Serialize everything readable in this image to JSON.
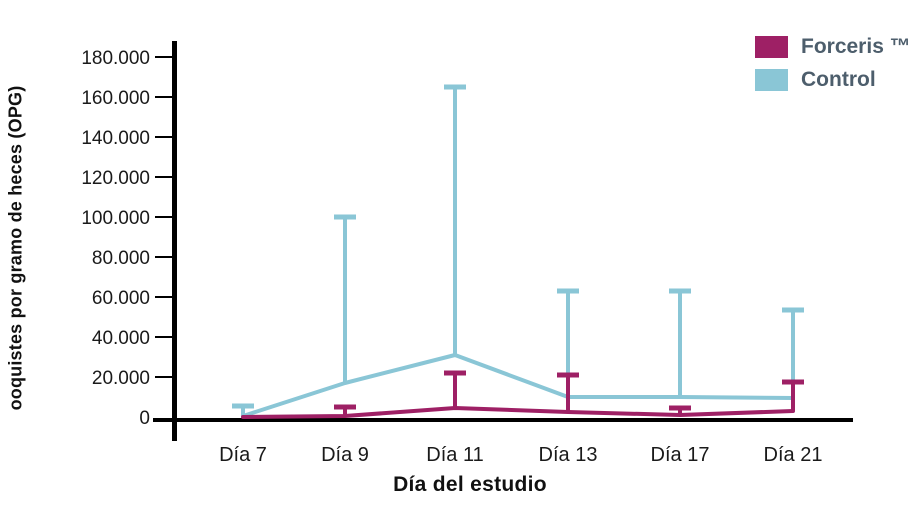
{
  "legend": {
    "items": [
      {
        "label": "Forceris ™",
        "color": "#9E2065"
      },
      {
        "label": "Control",
        "color": "#8AC6D6"
      }
    ]
  },
  "chart_data": {
    "type": "line",
    "title": "",
    "xlabel": "Día del estudio",
    "ylabel": "ooquistes por gramo de heces (OPG)",
    "categories": [
      "Día 7",
      "Día 9",
      "Día 11",
      "Día 13",
      "Día 17",
      "Día 21"
    ],
    "ylim": [
      0,
      180000
    ],
    "y_tick_step": 20000,
    "y_tick_labels": [
      "0",
      "20.000",
      "40.000",
      "60.000",
      "80.000",
      "100.000",
      "120.000",
      "140.000",
      "160.000",
      "180.000"
    ],
    "grid": false,
    "legend_position": "top-right",
    "error_bars": "upper-only",
    "series": [
      {
        "name": "Forceris ™",
        "color": "#9E2065",
        "values": [
          0,
          500,
          4500,
          2500,
          1000,
          3000
        ],
        "error_bar_top": [
          0,
          5000,
          22000,
          21000,
          4500,
          17500
        ]
      },
      {
        "name": "Control",
        "color": "#8AC6D6",
        "values": [
          500,
          17000,
          31000,
          10000,
          10000,
          9500
        ],
        "error_bar_top": [
          5500,
          100000,
          165000,
          63000,
          63000,
          53500
        ]
      }
    ],
    "axis_color": "#000000",
    "tick_label_color": "#1a1a1a"
  }
}
